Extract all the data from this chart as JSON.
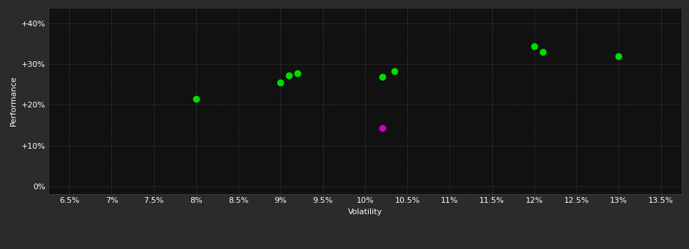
{
  "background_color": "#2b2b2b",
  "plot_bg_color": "#111111",
  "grid_color": "#555555",
  "text_color": "#ffffff",
  "xlabel": "Volatility",
  "ylabel": "Performance",
  "xlim": [
    0.0625,
    0.1375
  ],
  "ylim": [
    -0.02,
    0.44
  ],
  "xticks": [
    0.065,
    0.07,
    0.075,
    0.08,
    0.085,
    0.09,
    0.095,
    0.1,
    0.105,
    0.11,
    0.115,
    0.12,
    0.125,
    0.13,
    0.135
  ],
  "yticks": [
    0.0,
    0.1,
    0.2,
    0.3,
    0.4
  ],
  "green_points": [
    [
      0.08,
      0.215
    ],
    [
      0.09,
      0.255
    ],
    [
      0.091,
      0.272
    ],
    [
      0.092,
      0.278
    ],
    [
      0.102,
      0.27
    ],
    [
      0.1035,
      0.283
    ],
    [
      0.12,
      0.345
    ],
    [
      0.121,
      0.33
    ],
    [
      0.13,
      0.32
    ]
  ],
  "magenta_points": [
    [
      0.102,
      0.143
    ]
  ],
  "green_color": "#00dd00",
  "magenta_color": "#cc00cc",
  "marker_size": 6
}
